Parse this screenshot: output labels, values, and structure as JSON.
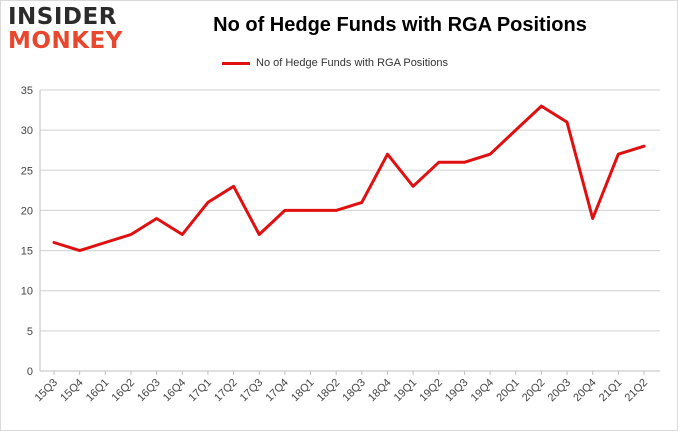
{
  "logo": {
    "line1": "INSIDER",
    "line2": "MONKEY"
  },
  "colors": {
    "series": "#e01010",
    "grid": "#d0d0d0",
    "axis": "#bfbfbf"
  },
  "chart_data": {
    "type": "line",
    "title": "No of Hedge Funds with RGA Positions",
    "xlabel": "",
    "ylabel": "",
    "legend_position": "top",
    "grid": true,
    "ylim": [
      0,
      35
    ],
    "yticks": [
      0,
      5,
      10,
      15,
      20,
      25,
      30,
      35
    ],
    "categories": [
      "15Q3",
      "15Q4",
      "16Q1",
      "16Q2",
      "16Q3",
      "16Q4",
      "17Q1",
      "17Q2",
      "17Q3",
      "17Q4",
      "18Q1",
      "18Q2",
      "18Q3",
      "18Q4",
      "19Q1",
      "19Q2",
      "19Q3",
      "19Q4",
      "20Q1",
      "20Q2",
      "20Q3",
      "20Q4",
      "21Q1",
      "21Q2"
    ],
    "series": [
      {
        "name": "No of Hedge Funds with RGA Positions",
        "values": [
          16,
          15,
          16,
          17,
          19,
          17,
          21,
          23,
          17,
          20,
          20,
          20,
          21,
          27,
          23,
          26,
          26,
          27,
          30,
          33,
          31,
          19,
          27,
          28
        ]
      }
    ]
  }
}
